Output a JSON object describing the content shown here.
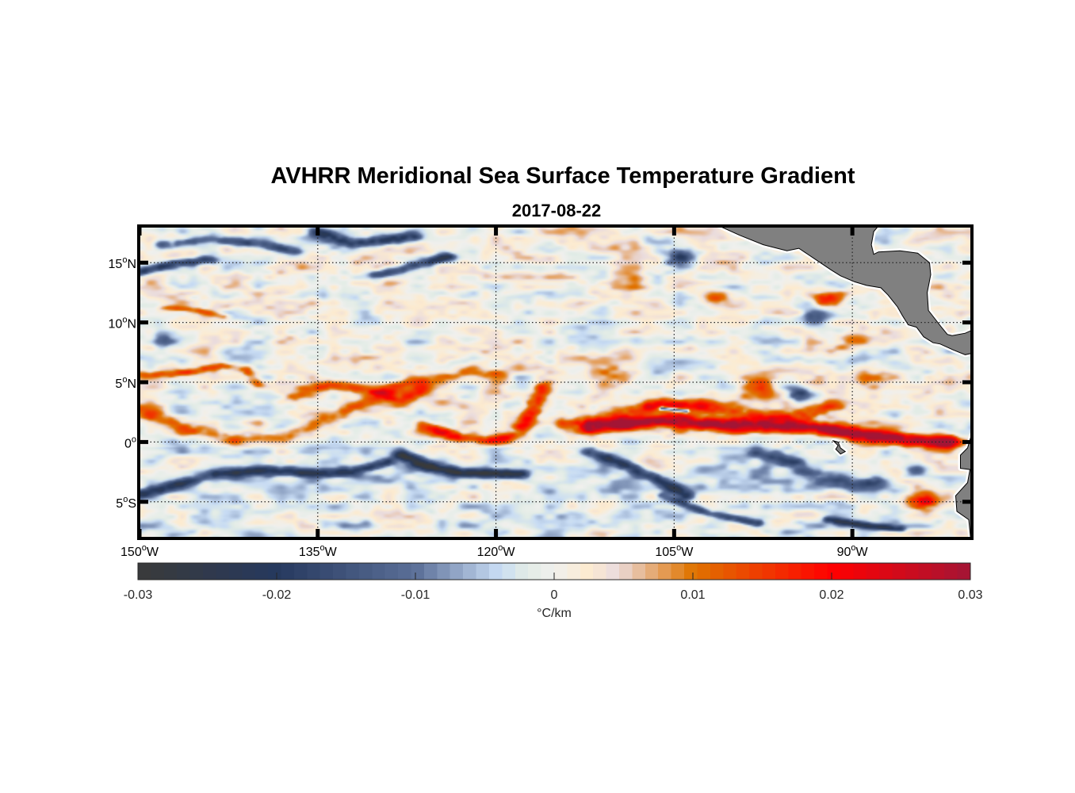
{
  "chart_data": {
    "type": "heatmap",
    "title": "AVHRR Meridional Sea Surface Temperature Gradient",
    "subtitle": "2017-08-22",
    "xlabel": "",
    "ylabel": "",
    "xlim": [
      -150,
      -80
    ],
    "ylim": [
      -8,
      18
    ],
    "grid": true,
    "grid_style": "dotted",
    "x_ticks": [
      {
        "value": -150,
        "label": "150°W",
        "num": "150",
        "hemi": "W"
      },
      {
        "value": -135,
        "label": "135°W",
        "num": "135",
        "hemi": "W"
      },
      {
        "value": -120,
        "label": "120°W",
        "num": "120",
        "hemi": "W"
      },
      {
        "value": -105,
        "label": "105°W",
        "num": "105",
        "hemi": "W"
      },
      {
        "value": -90,
        "label": "90°W",
        "num": "90",
        "hemi": "W"
      }
    ],
    "y_ticks": [
      {
        "value": 15,
        "label": "15°N",
        "num": "15",
        "hemi": "N"
      },
      {
        "value": 10,
        "label": "10°N",
        "num": "10",
        "hemi": "N"
      },
      {
        "value": 5,
        "label": "5°N",
        "num": "5",
        "hemi": "N"
      },
      {
        "value": 0,
        "label": "0°",
        "num": "0",
        "hemi": ""
      },
      {
        "value": -5,
        "label": "5°S",
        "num": "5",
        "hemi": "S"
      }
    ],
    "colorbar": {
      "label": "°C/km",
      "range": [
        -0.03,
        0.03
      ],
      "ticks": [
        {
          "value": -0.03,
          "label": "-0.03"
        },
        {
          "value": -0.02,
          "label": "-0.02"
        },
        {
          "value": -0.01,
          "label": "-0.01"
        },
        {
          "value": 0,
          "label": "0"
        },
        {
          "value": 0.01,
          "label": "0.01"
        },
        {
          "value": 0.02,
          "label": "0.02"
        },
        {
          "value": 0.03,
          "label": "0.03"
        }
      ],
      "colormap_stops": [
        {
          "value": -0.03,
          "color": "#3a3a3a"
        },
        {
          "value": -0.02,
          "color": "#26395e"
        },
        {
          "value": -0.01,
          "color": "#5b6f98"
        },
        {
          "value": -0.004,
          "color": "#c8dcf4"
        },
        {
          "value": -0.002,
          "color": "#e2ece6"
        },
        {
          "value": 0,
          "color": "#f0f0ee"
        },
        {
          "value": 0.0025,
          "color": "#fdebcf"
        },
        {
          "value": 0.0045,
          "color": "#eadcde"
        },
        {
          "value": 0.01,
          "color": "#e07400"
        },
        {
          "value": 0.02,
          "color": "#ff0000"
        },
        {
          "value": 0.03,
          "color": "#a31535"
        }
      ]
    },
    "land_color": "#808080",
    "features": [
      {
        "kind": "front",
        "desc": "strong warm front along equator",
        "points": [
          [
            -112,
            1.2
          ],
          [
            -106,
            1.8
          ],
          [
            -102,
            1.5
          ],
          [
            -97,
            1.3
          ],
          [
            -93,
            1.2
          ],
          [
            -90,
            0.7
          ],
          [
            -86,
            0.2
          ],
          [
            -82,
            0
          ]
        ],
        "value": 0.03,
        "width": 1.3
      },
      {
        "kind": "front",
        "desc": "warm band east",
        "points": [
          [
            -114,
            1.5
          ],
          [
            -110,
            2.2
          ],
          [
            -106,
            3.2
          ],
          [
            -103,
            3.0
          ],
          [
            -99,
            2.3
          ],
          [
            -95,
            2.0
          ],
          [
            -92,
            3.0
          ]
        ],
        "value": 0.016,
        "width": 1.4
      },
      {
        "kind": "front",
        "desc": "TIW crest 120W",
        "points": [
          [
            -126,
            1.3
          ],
          [
            -123,
            0.3
          ],
          [
            -120,
            0.1
          ],
          [
            -118,
            0.8
          ],
          [
            -117,
            2.5
          ],
          [
            -116,
            4.5
          ]
        ],
        "value": 0.016,
        "width": 1.0
      },
      {
        "kind": "front",
        "desc": "TIW loop 140W",
        "points": [
          [
            -150,
            2.5
          ],
          [
            -146,
            1.2
          ],
          [
            -142,
            0.3
          ],
          [
            -138,
            0.4
          ],
          [
            -135,
            1.5
          ],
          [
            -132,
            3
          ],
          [
            -128,
            4.8
          ],
          [
            -124,
            5.5
          ],
          [
            -120,
            5.8
          ]
        ],
        "value": 0.011,
        "width": 1.2
      },
      {
        "kind": "front",
        "desc": "warm crest 140W north",
        "points": [
          [
            -150,
            5.5
          ],
          [
            -146,
            5.8
          ],
          [
            -143,
            6.4
          ],
          [
            -141,
            6.0
          ],
          [
            -140,
            4.8
          ]
        ],
        "value": 0.012,
        "width": 0.8
      },
      {
        "kind": "front",
        "desc": "warm band 130W",
        "points": [
          [
            -137,
            3.8
          ],
          [
            -134,
            4.8
          ],
          [
            -131,
            4.3
          ],
          [
            -128,
            3.5
          ],
          [
            -126,
            4.4
          ]
        ],
        "value": 0.012,
        "width": 1.1
      },
      {
        "kind": "front",
        "desc": "cold trough 125W",
        "points": [
          [
            -128,
            -1.0
          ],
          [
            -126,
            -2.0
          ],
          [
            -123,
            -2.6
          ],
          [
            -118,
            -2.7
          ]
        ],
        "value": -0.026,
        "width": 0.9
      },
      {
        "kind": "front",
        "desc": "cold trough 140W",
        "points": [
          [
            -150,
            -4.4
          ],
          [
            -146,
            -3.3
          ],
          [
            -143,
            -2.6
          ],
          [
            -140,
            -2.4
          ],
          [
            -135,
            -2.7
          ],
          [
            -132,
            -2.5
          ],
          [
            -129,
            -1.6
          ]
        ],
        "value": -0.02,
        "width": 0.9
      },
      {
        "kind": "front",
        "desc": "cold trough 110W",
        "points": [
          [
            -112,
            -0.8
          ],
          [
            -109,
            -2.0
          ],
          [
            -106,
            -3.3
          ],
          [
            -104,
            -4.5
          ]
        ],
        "value": -0.02,
        "width": 0.9
      },
      {
        "kind": "front",
        "desc": "cold trough 95W",
        "points": [
          [
            -98,
            -1.0
          ],
          [
            -95,
            -1.8
          ],
          [
            -93,
            -3.0
          ],
          [
            -90,
            -3.5
          ],
          [
            -88,
            -3.3
          ]
        ],
        "value": -0.014,
        "width": 1.3
      },
      {
        "kind": "front",
        "desc": "cold patch N 15N",
        "points": [
          [
            -148,
            16.5
          ],
          [
            -144,
            17
          ],
          [
            -140,
            16.5
          ],
          [
            -137,
            16
          ]
        ],
        "value": -0.015,
        "width": 0.9
      },
      {
        "kind": "front",
        "desc": "cold patch 133W 16N",
        "points": [
          [
            -135,
            17.5
          ],
          [
            -132,
            16.6
          ],
          [
            -130,
            16.8
          ],
          [
            -127,
            17.2
          ]
        ],
        "value": -0.02,
        "width": 1.0
      },
      {
        "kind": "front",
        "desc": "cold patch 145W 14N",
        "points": [
          [
            -150,
            14.2
          ],
          [
            -147,
            15
          ],
          [
            -144,
            15.2
          ]
        ],
        "value": -0.018,
        "width": 0.8
      },
      {
        "kind": "front",
        "desc": "cold patch 125W 15N",
        "points": [
          [
            -130,
            14.0
          ],
          [
            -127,
            14.7
          ],
          [
            -124,
            15.5
          ]
        ],
        "value": -0.018,
        "width": 0.8
      },
      {
        "kind": "front",
        "desc": "warm patch 145W 11N",
        "points": [
          [
            -148,
            11.2
          ],
          [
            -145,
            11.0
          ],
          [
            -143,
            10.5
          ]
        ],
        "value": 0.009,
        "width": 0.6
      },
      {
        "kind": "front",
        "desc": "cold S band 100W",
        "points": [
          [
            -106,
            -4.5
          ],
          [
            -102,
            -6.0
          ],
          [
            -98,
            -6.8
          ]
        ],
        "value": -0.016,
        "width": 0.7
      },
      {
        "kind": "front",
        "desc": "cold S band 90W",
        "points": [
          [
            -92,
            -6.5
          ],
          [
            -89,
            -7.0
          ],
          [
            -86,
            -7.3
          ]
        ],
        "value": -0.018,
        "width": 0.6
      },
      {
        "kind": "front",
        "desc": "cold strip 5N 110W",
        "points": [
          [
            -106,
            2.8
          ],
          [
            -104,
            2.6
          ]
        ],
        "value": -0.028,
        "width": 0.35
      },
      {
        "kind": "blob",
        "center": [
          -104.5,
          15.5
        ],
        "value": -0.022,
        "r": 1.0
      },
      {
        "kind": "blob",
        "center": [
          -92.0,
          11.8
        ],
        "value": 0.02,
        "r": 0.8
      },
      {
        "kind": "blob",
        "center": [
          -93.0,
          10.5
        ],
        "value": -0.014,
        "r": 0.8
      },
      {
        "kind": "blob",
        "center": [
          -90.5,
          8.6
        ],
        "value": 0.012,
        "r": 0.9
      },
      {
        "kind": "blob",
        "center": [
          -101.5,
          12.0
        ],
        "value": 0.01,
        "r": 0.8
      },
      {
        "kind": "blob",
        "center": [
          -108.0,
          13.0
        ],
        "value": 0.006,
        "r": 1.2
      },
      {
        "kind": "blob",
        "center": [
          -84.0,
          -5.0
        ],
        "value": 0.024,
        "r": 0.9
      },
      {
        "kind": "blob",
        "center": [
          -85.5,
          -2.5
        ],
        "value": 0.018,
        "r": 1.0
      },
      {
        "kind": "blob",
        "center": [
          -85.0,
          -2.5
        ],
        "value": -0.022,
        "r": 0.8
      },
      {
        "kind": "blob",
        "center": [
          -94.5,
          4.0
        ],
        "value": -0.022,
        "r": 0.7
      },
      {
        "kind": "blob",
        "center": [
          -148.0,
          8.5
        ],
        "value": -0.012,
        "r": 0.8
      },
      {
        "kind": "blob",
        "center": [
          -98.0,
          4.5
        ],
        "value": 0.01,
        "r": 1.3
      },
      {
        "kind": "blob",
        "center": [
          -110.0,
          5.5
        ],
        "value": 0.01,
        "r": 1.2
      },
      {
        "kind": "blob",
        "center": [
          -88.0,
          5.0
        ],
        "value": 0.008,
        "r": 1.2
      }
    ]
  }
}
